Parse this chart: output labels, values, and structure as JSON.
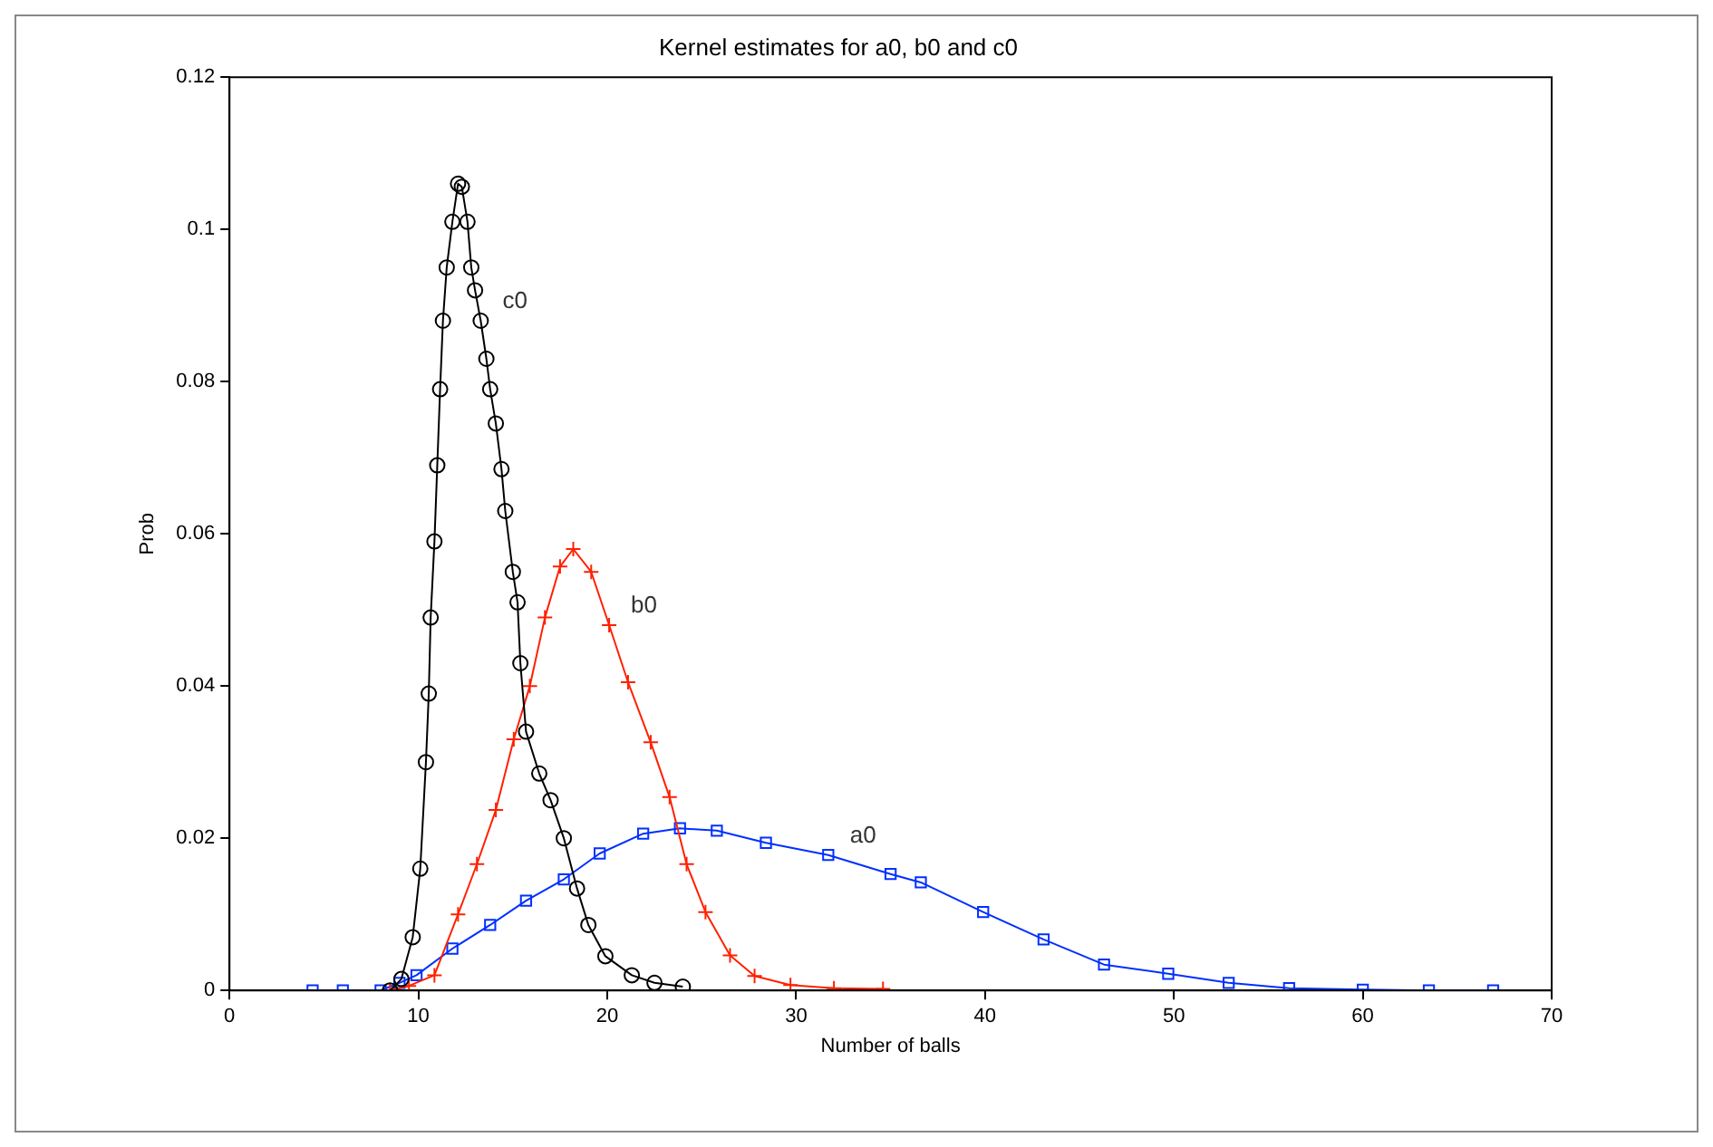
{
  "chart_data": {
    "type": "line",
    "title": "Kernel estimates for a0, b0 and c0",
    "xlabel": "Number of balls",
    "ylabel": "Prob",
    "xlim": [
      0,
      70
    ],
    "xticks": [
      0,
      10,
      20,
      30,
      40,
      50,
      60,
      70
    ],
    "ylim": [
      0,
      0.12
    ],
    "yticks": [
      0,
      0.02,
      0.04,
      0.06,
      0.08,
      0.1,
      0.12
    ],
    "grid": false,
    "legend": false,
    "line_style": "solid",
    "series": [
      {
        "name": "c0",
        "color": "#000000",
        "marker": "circle",
        "x": [
          8.5,
          9.1,
          9.7,
          10.1,
          10.4,
          10.55,
          10.65,
          10.85,
          11.0,
          11.15,
          11.3,
          11.5,
          11.8,
          12.1,
          12.3,
          12.6,
          12.8,
          13.0,
          13.3,
          13.6,
          13.8,
          14.1,
          14.4,
          14.6,
          15.0,
          15.25,
          15.4,
          15.7,
          16.4,
          17.0,
          17.7,
          18.4,
          19.0,
          19.9,
          21.3,
          22.5,
          24.0
        ],
        "values": [
          0.0,
          0.0015,
          0.007,
          0.016,
          0.03,
          0.039,
          0.049,
          0.059,
          0.069,
          0.079,
          0.088,
          0.095,
          0.101,
          0.106,
          0.1056,
          0.101,
          0.095,
          0.092,
          0.088,
          0.083,
          0.079,
          0.0745,
          0.0685,
          0.063,
          0.055,
          0.051,
          0.043,
          0.034,
          0.0285,
          0.025,
          0.02,
          0.0134,
          0.0086,
          0.0045,
          0.002,
          0.001,
          0.0005
        ]
      },
      {
        "name": "b0",
        "color": "#ff2000",
        "marker": "cross",
        "x": [
          8.5,
          9.5,
          10.85,
          12.1,
          13.1,
          14.1,
          15.05,
          15.9,
          16.7,
          17.5,
          18.2,
          19.15,
          20.1,
          21.1,
          22.3,
          23.3,
          24.2,
          25.2,
          26.5,
          27.8,
          29.7,
          32.0,
          34.6
        ],
        "values": [
          0.0,
          0.0006,
          0.002,
          0.01,
          0.0166,
          0.0237,
          0.033,
          0.04,
          0.049,
          0.0557,
          0.058,
          0.055,
          0.048,
          0.0405,
          0.0326,
          0.0254,
          0.0166,
          0.0103,
          0.0046,
          0.0019,
          0.0007,
          0.0003,
          0.0002
        ]
      },
      {
        "name": "a0",
        "color": "#0030ff",
        "marker": "square",
        "x": [
          4.4,
          6.0,
          8.0,
          9.0,
          9.9,
          11.8,
          13.8,
          15.7,
          17.7,
          19.6,
          21.9,
          23.85,
          25.8,
          28.4,
          31.7,
          35.0,
          36.6,
          39.9,
          43.1,
          46.3,
          49.7,
          52.9,
          56.1,
          60.0,
          63.5,
          66.9
        ],
        "values": [
          0.0,
          0.0,
          0.0,
          0.001,
          0.002,
          0.0055,
          0.0086,
          0.0118,
          0.0146,
          0.018,
          0.0206,
          0.0213,
          0.021,
          0.0194,
          0.0178,
          0.0153,
          0.0142,
          0.0103,
          0.0067,
          0.0034,
          0.0022,
          0.001,
          0.0003,
          0.0001,
          0.0,
          0.0
        ]
      }
    ]
  }
}
